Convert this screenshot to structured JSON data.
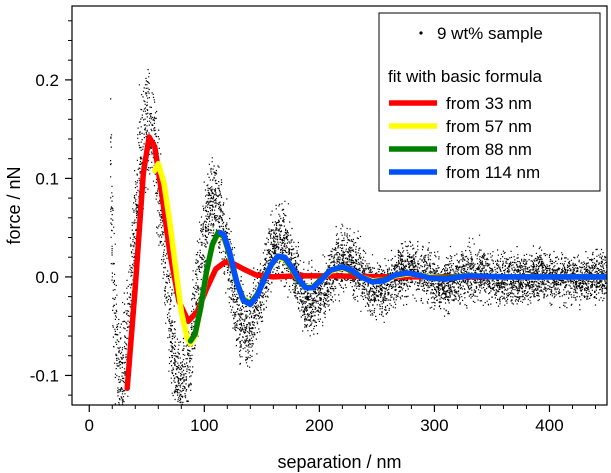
{
  "chart_data": {
    "type": "line",
    "title": "",
    "xlabel": "separation / nm",
    "ylabel": "force / nN",
    "xlim": [
      -15,
      450
    ],
    "ylim": [
      -0.13,
      0.275
    ],
    "x_ticks": [
      0,
      100,
      200,
      300,
      400
    ],
    "x_tick_labels": [
      "0",
      "100",
      "200",
      "300",
      "400"
    ],
    "y_ticks": [
      -0.1,
      0.0,
      0.1,
      0.2
    ],
    "y_tick_labels": [
      "-0.1",
      "0.0",
      "0.1",
      "0.2"
    ],
    "grid": false,
    "legend_position": "top-right",
    "scatter": {
      "name": "9 wt% sample",
      "color": "#000000",
      "x_range": [
        18,
        450
      ],
      "noise_amplitude": 0.012,
      "description_of_trend": "damped oscillation with steep repulsive wall below 30 nm"
    },
    "legend_header": "fit with basic formula",
    "series": [
      {
        "name": "from 33 nm",
        "color": "#ff0000",
        "x": [
          33,
          40,
          47,
          52,
          57,
          63,
          70,
          78,
          86,
          94,
          102,
          110,
          118,
          126,
          134,
          145,
          160,
          180,
          210,
          260,
          320,
          380,
          450
        ],
        "y": [
          -0.113,
          -0.01,
          0.105,
          0.142,
          0.132,
          0.085,
          0.025,
          -0.025,
          -0.045,
          -0.035,
          -0.012,
          0.008,
          0.015,
          0.013,
          0.008,
          0.002,
          0.0,
          0.001,
          0.001,
          0.0,
          0.0,
          0.0,
          0.0
        ]
      },
      {
        "name": "from 57 nm",
        "color": "#ffff00",
        "x": [
          57,
          60,
          65,
          70,
          75,
          80,
          85,
          88,
          92,
          97,
          102,
          107,
          112,
          117,
          122,
          128,
          134,
          140,
          146,
          152,
          158,
          164,
          170,
          176,
          182,
          188,
          194,
          200,
          210,
          220,
          228,
          236,
          246,
          256,
          266,
          276,
          286,
          296,
          310,
          330,
          360,
          400,
          450
        ],
        "y": [
          0.108,
          0.115,
          0.095,
          0.055,
          0.01,
          -0.035,
          -0.062,
          -0.068,
          -0.06,
          -0.03,
          0.005,
          0.032,
          0.044,
          0.04,
          0.022,
          -0.005,
          -0.022,
          -0.026,
          -0.018,
          -0.002,
          0.012,
          0.02,
          0.018,
          0.008,
          -0.003,
          -0.01,
          -0.01,
          -0.004,
          0.006,
          0.009,
          0.006,
          0.0,
          -0.004,
          -0.003,
          0.001,
          0.003,
          0.002,
          0.0,
          -0.001,
          0.001,
          0.0,
          0.0,
          0.0
        ]
      },
      {
        "name": "from 88 nm",
        "color": "#008000",
        "x": [
          88,
          92,
          97,
          102,
          107,
          112,
          117,
          122,
          128,
          134,
          140,
          146,
          152,
          158,
          164,
          170,
          176,
          182,
          188,
          194,
          200,
          210,
          220,
          228,
          236,
          246,
          256,
          266,
          276,
          286,
          296,
          310,
          330,
          360,
          400,
          450
        ],
        "y": [
          -0.065,
          -0.058,
          -0.03,
          0.006,
          0.033,
          0.045,
          0.041,
          0.023,
          -0.005,
          -0.023,
          -0.027,
          -0.018,
          -0.002,
          0.012,
          0.021,
          0.019,
          0.009,
          -0.003,
          -0.011,
          -0.011,
          -0.004,
          0.007,
          0.01,
          0.006,
          0.0,
          -0.005,
          -0.003,
          0.002,
          0.004,
          0.002,
          -0.001,
          -0.001,
          0.001,
          0.0,
          0.0,
          0.0
        ]
      },
      {
        "name": "from 114 nm",
        "color": "#0050ff",
        "x": [
          114,
          117,
          122,
          128,
          134,
          140,
          146,
          152,
          158,
          164,
          170,
          176,
          182,
          188,
          194,
          200,
          210,
          220,
          228,
          236,
          246,
          256,
          266,
          276,
          286,
          296,
          310,
          330,
          360,
          400,
          450
        ],
        "y": [
          0.045,
          0.043,
          0.025,
          -0.004,
          -0.024,
          -0.028,
          -0.019,
          -0.003,
          0.012,
          0.021,
          0.02,
          0.01,
          -0.002,
          -0.011,
          -0.011,
          -0.005,
          0.007,
          0.01,
          0.007,
          0.0,
          -0.005,
          -0.004,
          0.002,
          0.004,
          0.002,
          -0.001,
          -0.002,
          0.001,
          0.0,
          0.0,
          0.0
        ]
      }
    ]
  }
}
